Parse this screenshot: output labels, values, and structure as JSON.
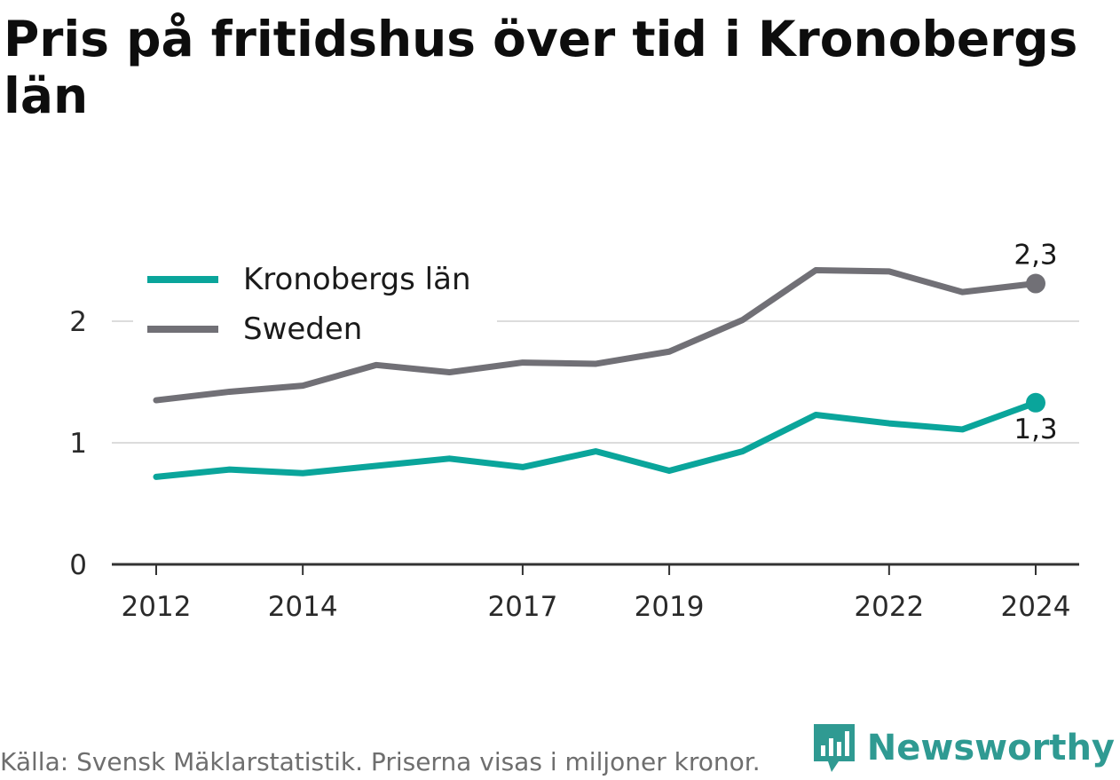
{
  "title": "Pris på fritidshus över tid i Kronobergs län",
  "source_note": "Källa: Svensk Mäklarstatistik. Priserna visas i miljoner kronor.",
  "brand": {
    "name": "Newsworthy",
    "icon": "newsworthy-logo-icon",
    "color": "#2f9a92"
  },
  "chart_data": {
    "type": "line",
    "x": [
      2012,
      2013,
      2014,
      2015,
      2016,
      2017,
      2018,
      2019,
      2020,
      2021,
      2022,
      2023,
      2024
    ],
    "x_ticks": [
      2012,
      2014,
      2017,
      2019,
      2022,
      2024
    ],
    "x_tick_labels": [
      "2012",
      "2014",
      "2017",
      "2019",
      "2022",
      "2024"
    ],
    "y_ticks": [
      0,
      1,
      2
    ],
    "y_tick_labels": [
      "0",
      "1",
      "2"
    ],
    "ylim": [
      0,
      2.4
    ],
    "grid": true,
    "legend_position": "top-left",
    "series": [
      {
        "name": "Kronobergs län",
        "color": "#0aa59b",
        "values": [
          0.72,
          0.78,
          0.75,
          0.81,
          0.87,
          0.8,
          0.93,
          0.77,
          0.93,
          1.23,
          1.16,
          1.11,
          1.33
        ],
        "end_label": "1,3"
      },
      {
        "name": "Sweden",
        "color": "#717076",
        "values": [
          1.35,
          1.42,
          1.47,
          1.64,
          1.58,
          1.66,
          1.65,
          1.75,
          2.01,
          2.42,
          2.41,
          2.24,
          2.31
        ],
        "end_label": "2,3"
      }
    ]
  }
}
